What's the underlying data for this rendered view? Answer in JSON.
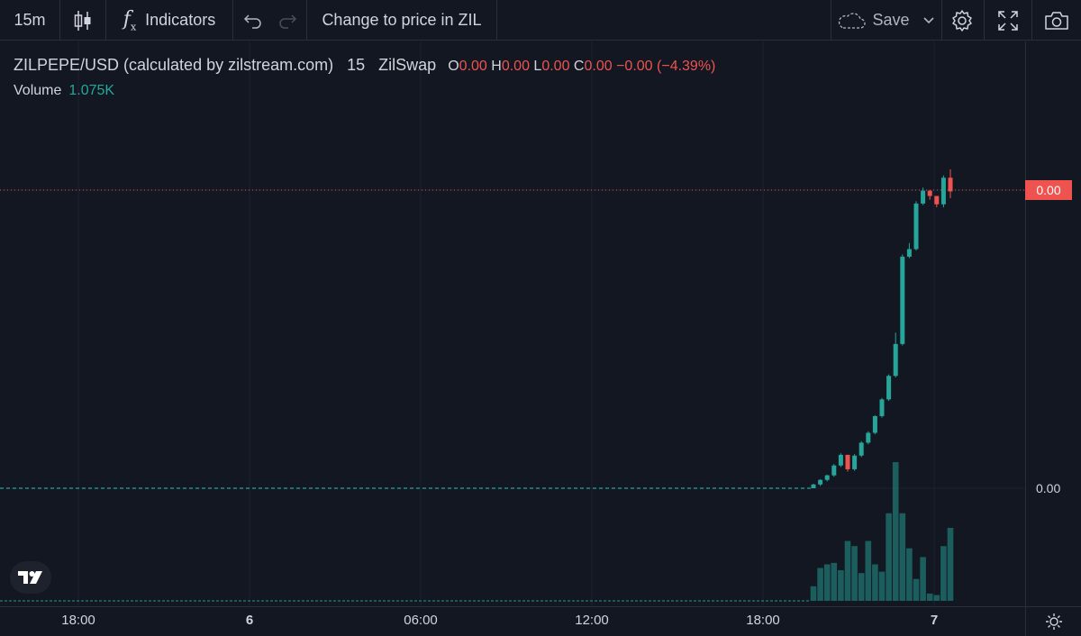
{
  "toolbar": {
    "interval": "15m",
    "indicators_label": "Indicators",
    "change_price_label": "Change to price in ZIL",
    "save_label": "Save"
  },
  "legend": {
    "symbol": "ZILPEPE/USD (calculated by zilstream.com)",
    "interval": "15",
    "exchange": "ZilSwap",
    "open_label": "O",
    "open": "0.00",
    "high_label": "H",
    "high": "0.00",
    "low_label": "L",
    "low": "0.00",
    "close_label": "C",
    "close": "0.00",
    "change": "−0.00",
    "change_pct": "(−4.39%)"
  },
  "volume": {
    "label": "Volume",
    "value": "1.075K"
  },
  "price_axis": {
    "last_price": "0.00",
    "baseline_price": "0.00"
  },
  "time_axis": [
    "18:00",
    "6",
    "06:00",
    "12:00",
    "18:00",
    "7"
  ],
  "colors": {
    "up": "#26a69a",
    "down": "#ef5350",
    "background": "#131722",
    "grid": "#1e222d"
  },
  "icons": [
    "candlestick-icon",
    "indicators-fx-icon",
    "undo-icon",
    "redo-icon",
    "cloud-icon",
    "chevron-down-icon",
    "gear-icon",
    "fullscreen-icon",
    "camera-icon",
    "tradingview-logo-icon",
    "sun-icon"
  ],
  "chart_data": {
    "type": "candlestick",
    "x_ticks": [
      "18:00",
      "6",
      "06:00",
      "12:00",
      "18:00",
      "7"
    ],
    "candles": [
      {
        "o": 0.0,
        "h": 0.6,
        "l": 0.0,
        "c": 0.5,
        "v": 20
      },
      {
        "o": 0.5,
        "h": 1.2,
        "l": 0.3,
        "c": 1.1,
        "v": 45
      },
      {
        "o": 1.1,
        "h": 1.8,
        "l": 0.9,
        "c": 1.7,
        "v": 50
      },
      {
        "o": 1.7,
        "h": 3.2,
        "l": 1.5,
        "c": 3.0,
        "v": 52
      },
      {
        "o": 3.0,
        "h": 4.6,
        "l": 2.8,
        "c": 4.4,
        "v": 42
      },
      {
        "o": 4.4,
        "h": 4.4,
        "l": 2.2,
        "c": 2.5,
        "v": 82
      },
      {
        "o": 2.5,
        "h": 4.5,
        "l": 2.3,
        "c": 4.3,
        "v": 75
      },
      {
        "o": 4.3,
        "h": 6.2,
        "l": 4.1,
        "c": 6.0,
        "v": 38
      },
      {
        "o": 6.0,
        "h": 7.5,
        "l": 5.8,
        "c": 7.3,
        "v": 82
      },
      {
        "o": 7.3,
        "h": 9.6,
        "l": 7.1,
        "c": 9.5,
        "v": 50
      },
      {
        "o": 9.5,
        "h": 11.9,
        "l": 9.3,
        "c": 11.7,
        "v": 40
      },
      {
        "o": 11.7,
        "h": 15.0,
        "l": 11.5,
        "c": 14.8,
        "v": 120
      },
      {
        "o": 14.8,
        "h": 20.5,
        "l": 14.6,
        "c": 19.0,
        "v": 190
      },
      {
        "o": 19.0,
        "h": 30.8,
        "l": 18.8,
        "c": 30.5,
        "v": 120
      },
      {
        "o": 30.5,
        "h": 32.3,
        "l": 30.3,
        "c": 31.5,
        "v": 72
      },
      {
        "o": 31.5,
        "h": 37.8,
        "l": 31.3,
        "c": 37.5,
        "v": 30
      },
      {
        "o": 37.5,
        "h": 39.6,
        "l": 37.3,
        "c": 39.2,
        "v": 60
      },
      {
        "o": 39.2,
        "h": 39.2,
        "l": 38.0,
        "c": 38.5,
        "v": 10
      },
      {
        "o": 38.5,
        "h": 38.5,
        "l": 37.0,
        "c": 37.4,
        "v": 8
      },
      {
        "o": 37.4,
        "h": 41.2,
        "l": 37.0,
        "c": 40.9,
        "v": 75
      },
      {
        "o": 40.9,
        "h": 42.0,
        "l": 38.2,
        "c": 39.1,
        "v": 100
      }
    ]
  }
}
